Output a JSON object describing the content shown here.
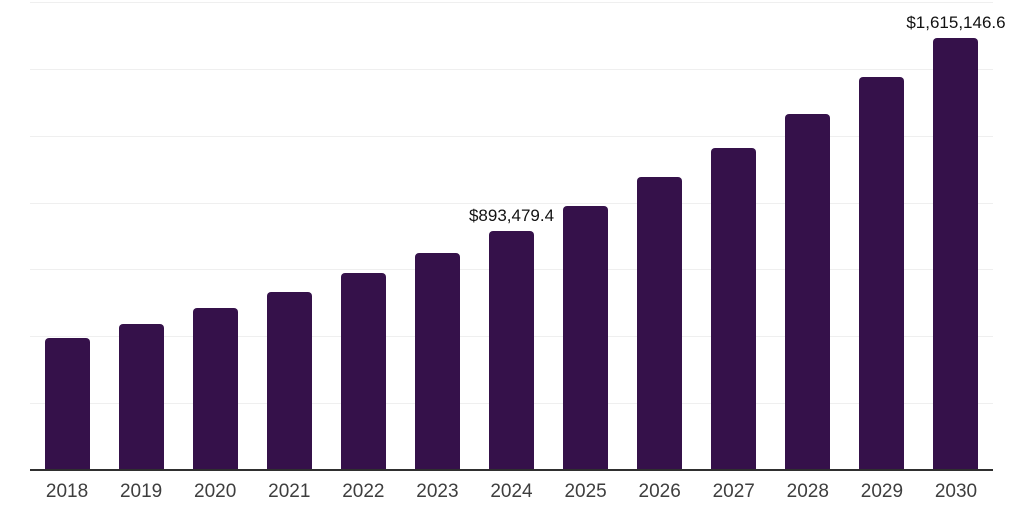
{
  "chart_data": {
    "type": "bar",
    "title": "",
    "xlabel": "",
    "ylabel": "",
    "categories": [
      "2018",
      "2019",
      "2020",
      "2021",
      "2022",
      "2023",
      "2024",
      "2025",
      "2026",
      "2027",
      "2028",
      "2029",
      "2030"
    ],
    "values": [
      493600,
      545900,
      605800,
      665600,
      736600,
      811400,
      893479.4,
      987200,
      1095600,
      1204100,
      1331200,
      1469500,
      1615146.6
    ],
    "data_labels": [
      "",
      "",
      "",
      "",
      "",
      "",
      "$893,479.4",
      "",
      "",
      "",
      "",
      "",
      "$1,615,146.6"
    ],
    "ylim": [
      0,
      1750000
    ],
    "y_gridline_interval": 250000,
    "grid": true,
    "y_axis_labels_visible": false,
    "legend_position": "none",
    "colors": {
      "bar": "#35114a",
      "gridline": "#efefef",
      "axis_line": "#2f2f2f",
      "tick_label": "#3e3e3e",
      "data_label": "#121212",
      "background": "#ffffff"
    }
  }
}
